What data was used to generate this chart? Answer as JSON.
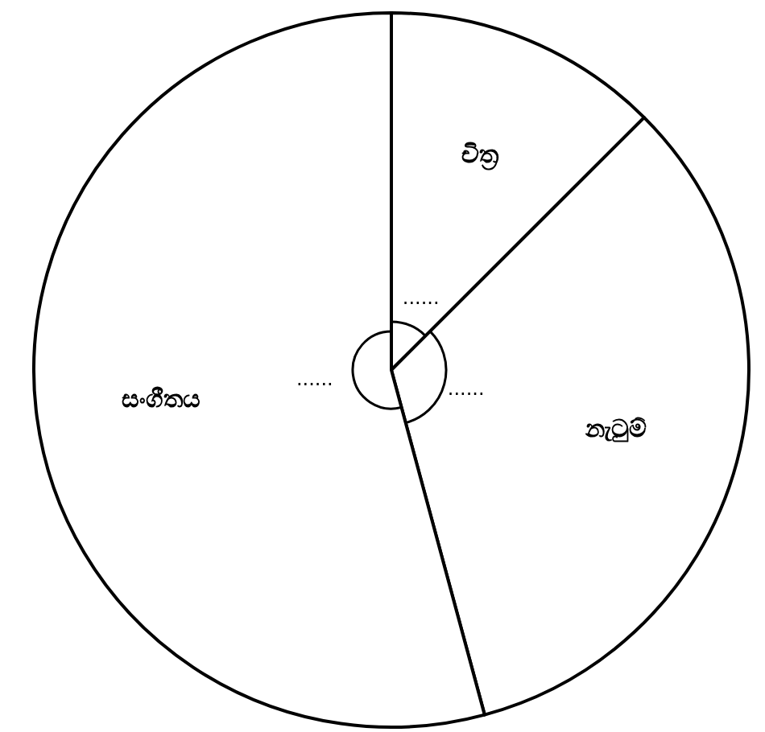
{
  "chart_data": {
    "type": "pie",
    "categories": [
      "චිත්‍ර",
      "නැටුම්",
      "සංගීතය"
    ],
    "values": [
      12.5,
      33.3,
      54.2
    ],
    "colors": [
      "#ffffff",
      "#ffffff",
      "#ffffff"
    ],
    "annotations": [
      "......",
      "......",
      "......"
    ]
  }
}
